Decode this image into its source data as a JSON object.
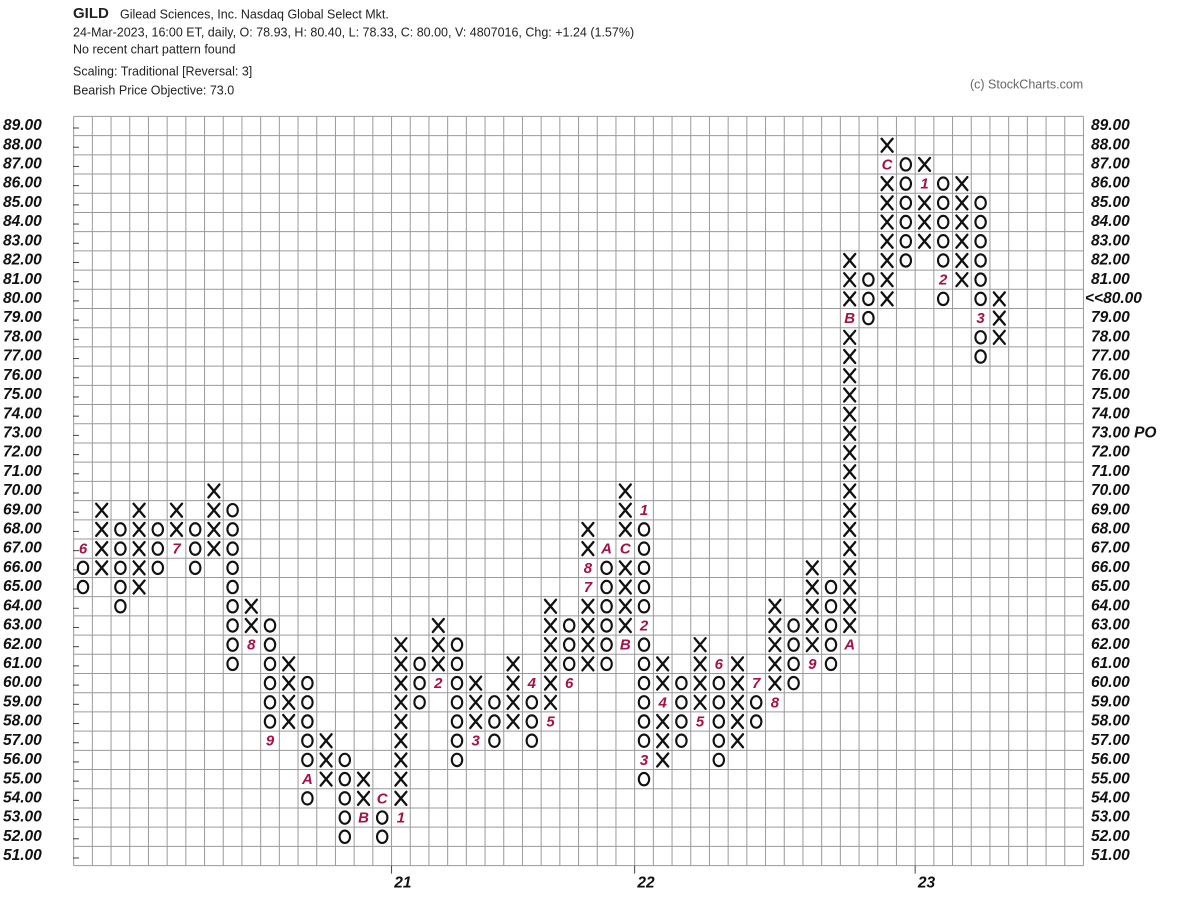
{
  "chart_data": {
    "type": "point_and_figure",
    "symbol": "GILD",
    "company": "Gilead Sciences, Inc.  Nasdaq Global Select Mkt.",
    "quote": "24-Mar-2023, 16:00 ET, daily, O: 78.93, H: 80.40, L: 78.33, C: 80.00, V: 4807016, Chg: +1.24 (1.57%)",
    "pattern": "No recent chart pattern found",
    "scaling": "Scaling: Traditional [Reversal: 3]",
    "objective_text": "Bearish Price Objective: 73.0",
    "copyright": "(c) StockCharts.com",
    "x_color": "#111111",
    "o_color": "#111111",
    "month_color": "#a3124a",
    "highlight_color": "#e0001b",
    "ylim": [
      51,
      89
    ],
    "yticks": [
      {
        "value": 89,
        "label": "89.00"
      },
      {
        "value": 88,
        "label": "88.00"
      },
      {
        "value": 87,
        "label": "87.00"
      },
      {
        "value": 86,
        "label": "86.00"
      },
      {
        "value": 85,
        "label": "85.00"
      },
      {
        "value": 84,
        "label": "84.00"
      },
      {
        "value": 83,
        "label": "83.00"
      },
      {
        "value": 82,
        "label": "82.00"
      },
      {
        "value": 81,
        "label": "81.00"
      },
      {
        "value": 80,
        "label": "80.00"
      },
      {
        "value": 79,
        "label": "79.00"
      },
      {
        "value": 78,
        "label": "78.00"
      },
      {
        "value": 77,
        "label": "77.00"
      },
      {
        "value": 76,
        "label": "76.00"
      },
      {
        "value": 75,
        "label": "75.00"
      },
      {
        "value": 74,
        "label": "74.00"
      },
      {
        "value": 73,
        "label": "73.00"
      },
      {
        "value": 72,
        "label": "72.00"
      },
      {
        "value": 71,
        "label": "71.00"
      },
      {
        "value": 70,
        "label": "70.00"
      },
      {
        "value": 69,
        "label": "69.00"
      },
      {
        "value": 68,
        "label": "68.00"
      },
      {
        "value": 67,
        "label": "67.00"
      },
      {
        "value": 66,
        "label": "66.00"
      },
      {
        "value": 65,
        "label": "65.00"
      },
      {
        "value": 64,
        "label": "64.00"
      },
      {
        "value": 63,
        "label": "63.00"
      },
      {
        "value": 62,
        "label": "62.00"
      },
      {
        "value": 61,
        "label": "61.00"
      },
      {
        "value": 60,
        "label": "60.00"
      },
      {
        "value": 59,
        "label": "59.00"
      },
      {
        "value": 58,
        "label": "58.00"
      },
      {
        "value": 57,
        "label": "57.00"
      },
      {
        "value": 56,
        "label": "56.00"
      },
      {
        "value": 55,
        "label": "55.00"
      },
      {
        "value": 54,
        "label": "54.00"
      },
      {
        "value": 53,
        "label": "53.00"
      },
      {
        "value": 52,
        "label": "52.00"
      },
      {
        "value": 51,
        "label": "51.00"
      }
    ],
    "last_price": {
      "value": 80,
      "label": "<<80.00"
    },
    "price_objective": {
      "value": 73,
      "label": "73.00 PO"
    },
    "columns": [
      {
        "type": "O",
        "low": 65,
        "high": 67,
        "months": [
          {
            "price": 67,
            "label": "6"
          }
        ]
      },
      {
        "type": "X",
        "low": 66,
        "high": 69,
        "months": []
      },
      {
        "type": "O",
        "low": 64,
        "high": 68,
        "months": []
      },
      {
        "type": "X",
        "low": 65,
        "high": 69,
        "months": []
      },
      {
        "type": "O",
        "low": 66,
        "high": 68,
        "months": []
      },
      {
        "type": "X",
        "low": 67,
        "high": 69,
        "months": [
          {
            "price": 67,
            "label": "7"
          }
        ]
      },
      {
        "type": "O",
        "low": 66,
        "high": 68,
        "months": []
      },
      {
        "type": "X",
        "low": 67,
        "high": 70,
        "months": []
      },
      {
        "type": "O",
        "low": 61,
        "high": 69,
        "months": []
      },
      {
        "type": "X",
        "low": 62,
        "high": 64,
        "months": [
          {
            "price": 62,
            "label": "8"
          }
        ]
      },
      {
        "type": "O",
        "low": 57,
        "high": 63,
        "months": [
          {
            "price": 57,
            "label": "9"
          }
        ]
      },
      {
        "type": "X",
        "low": 58,
        "high": 61,
        "months": []
      },
      {
        "type": "O",
        "low": 54,
        "high": 60,
        "months": [
          {
            "price": 55,
            "label": "A"
          }
        ]
      },
      {
        "type": "X",
        "low": 55,
        "high": 57,
        "months": []
      },
      {
        "type": "O",
        "low": 52,
        "high": 56,
        "months": []
      },
      {
        "type": "X",
        "low": 53,
        "high": 55,
        "months": [
          {
            "price": 53,
            "label": "B"
          }
        ]
      },
      {
        "type": "O",
        "low": 52,
        "high": 54,
        "months": [
          {
            "price": 54,
            "label": "C"
          }
        ]
      },
      {
        "type": "X",
        "low": 53,
        "high": 62,
        "months": [
          {
            "price": 53,
            "label": "1"
          }
        ],
        "year": "21"
      },
      {
        "type": "O",
        "low": 59,
        "high": 61,
        "months": []
      },
      {
        "type": "X",
        "low": 60,
        "high": 63,
        "months": [
          {
            "price": 60,
            "label": "2"
          }
        ]
      },
      {
        "type": "O",
        "low": 56,
        "high": 62,
        "months": []
      },
      {
        "type": "X",
        "low": 57,
        "high": 60,
        "months": [
          {
            "price": 57,
            "label": "3"
          }
        ]
      },
      {
        "type": "O",
        "low": 57,
        "high": 59,
        "months": []
      },
      {
        "type": "X",
        "low": 58,
        "high": 61,
        "months": []
      },
      {
        "type": "O",
        "low": 57,
        "high": 60,
        "months": [
          {
            "price": 60,
            "label": "4"
          }
        ]
      },
      {
        "type": "X",
        "low": 58,
        "high": 64,
        "months": [
          {
            "price": 58,
            "label": "5"
          }
        ]
      },
      {
        "type": "O",
        "low": 60,
        "high": 63,
        "months": [
          {
            "price": 60,
            "label": "6"
          }
        ]
      },
      {
        "type": "X",
        "low": 61,
        "high": 68,
        "months": [
          {
            "price": 65,
            "label": "7"
          },
          {
            "price": 66,
            "label": "8"
          }
        ]
      },
      {
        "type": "O",
        "low": 61,
        "high": 67,
        "months": [
          {
            "price": 67,
            "label": "A"
          }
        ]
      },
      {
        "type": "X",
        "low": 62,
        "high": 70,
        "months": [
          {
            "price": 62,
            "label": "B"
          },
          {
            "price": 67,
            "label": "C"
          }
        ]
      },
      {
        "type": "O",
        "low": 55,
        "high": 69,
        "months": [
          {
            "price": 69,
            "label": "1"
          },
          {
            "price": 63,
            "label": "2"
          },
          {
            "price": 56,
            "label": "3"
          }
        ],
        "year": "22"
      },
      {
        "type": "X",
        "low": 56,
        "high": 61,
        "months": [
          {
            "price": 59,
            "label": "4"
          }
        ]
      },
      {
        "type": "O",
        "low": 57,
        "high": 60,
        "months": []
      },
      {
        "type": "X",
        "low": 58,
        "high": 62,
        "months": [
          {
            "price": 58,
            "label": "5"
          }
        ]
      },
      {
        "type": "O",
        "low": 56,
        "high": 61,
        "months": [
          {
            "price": 61,
            "label": "6"
          }
        ]
      },
      {
        "type": "X",
        "low": 57,
        "high": 61,
        "months": []
      },
      {
        "type": "O",
        "low": 58,
        "high": 60,
        "months": [
          {
            "price": 60,
            "label": "7"
          }
        ]
      },
      {
        "type": "X",
        "low": 59,
        "high": 64,
        "months": [
          {
            "price": 59,
            "label": "8"
          }
        ]
      },
      {
        "type": "O",
        "low": 60,
        "high": 63,
        "months": []
      },
      {
        "type": "X",
        "low": 61,
        "high": 66,
        "months": [
          {
            "price": 61,
            "label": "9"
          }
        ]
      },
      {
        "type": "O",
        "low": 61,
        "high": 65,
        "months": []
      },
      {
        "type": "X",
        "low": 62,
        "high": 82,
        "months": [
          {
            "price": 62,
            "label": "A"
          },
          {
            "price": 79,
            "label": "B"
          }
        ]
      },
      {
        "type": "O",
        "low": 79,
        "high": 81,
        "months": []
      },
      {
        "type": "X",
        "low": 80,
        "high": 88,
        "months": [
          {
            "price": 87,
            "label": "C"
          }
        ]
      },
      {
        "type": "O",
        "low": 82,
        "high": 87,
        "months": []
      },
      {
        "type": "X",
        "low": 83,
        "high": 87,
        "months": [
          {
            "price": 86,
            "label": "1"
          }
        ],
        "year": "23"
      },
      {
        "type": "O",
        "low": 80,
        "high": 86,
        "months": [
          {
            "price": 81,
            "label": "2"
          }
        ]
      },
      {
        "type": "X",
        "low": 81,
        "high": 86,
        "months": []
      },
      {
        "type": "O",
        "low": 77,
        "high": 85,
        "months": [
          {
            "price": 79,
            "label": "3"
          }
        ]
      },
      {
        "type": "X",
        "low": 78,
        "high": 80,
        "months": []
      }
    ]
  }
}
